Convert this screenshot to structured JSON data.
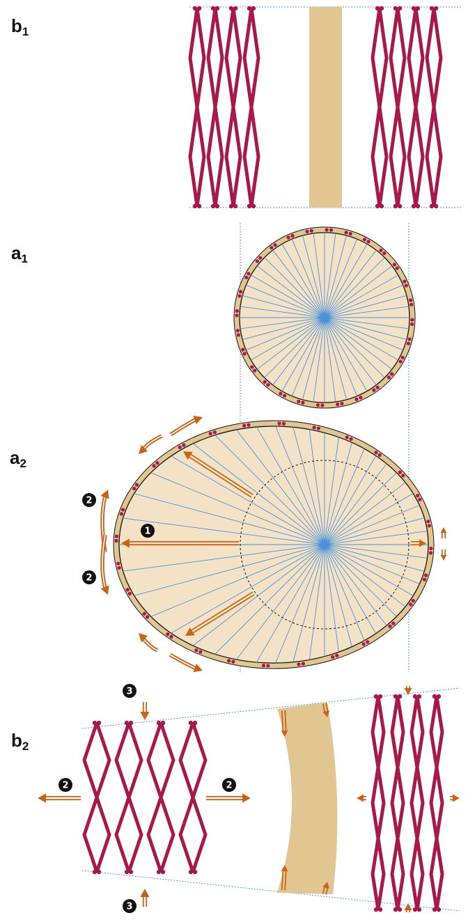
{
  "panels": {
    "b1": {
      "letter": "b",
      "sub": "1"
    },
    "a1": {
      "letter": "a",
      "sub": "1"
    },
    "a2": {
      "letter": "a",
      "sub": "2"
    },
    "b2": {
      "letter": "b",
      "sub": "2"
    }
  },
  "steps": {
    "one": "1",
    "two": "2",
    "three": "3"
  },
  "colors": {
    "strut": "#a8184a",
    "band": "#e2c692",
    "disc": "#f3e2c6",
    "ray": "#4a90d9",
    "arrow": "#c8641a",
    "guide": "#5b8fd6",
    "ink": "#111111"
  },
  "icons": {
    "arrow": "double-line-arrow-icon",
    "joint": "strut-joint-icon",
    "badge": "numbered-circle-icon"
  }
}
